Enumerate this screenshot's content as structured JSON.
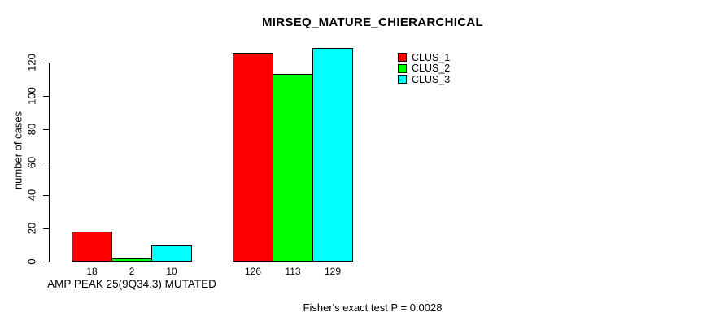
{
  "chart_data": {
    "type": "bar",
    "title": "MIRSEQ_MATURE_CHIERARCHICAL",
    "ylabel": "number of cases",
    "xlabel": "",
    "ylim": [
      0,
      120
    ],
    "yticks": [
      0,
      20,
      40,
      60,
      80,
      100,
      120
    ],
    "categories": [
      "AMP PEAK 25(9Q34.3) MUTATED",
      ""
    ],
    "series": [
      {
        "name": "CLUS_1",
        "color": "#FF0000",
        "values": [
          18,
          126
        ]
      },
      {
        "name": "CLUS_2",
        "color": "#00FF00",
        "values": [
          2,
          113
        ]
      },
      {
        "name": "CLUS_3",
        "color": "#00FFFF",
        "values": [
          10,
          129
        ]
      }
    ],
    "bar_value_labels": [
      [
        18,
        2,
        10
      ],
      [
        126,
        113,
        129
      ]
    ],
    "legend_position": "top-right",
    "grid": false,
    "annotation": "Fisher's exact test P = 0.0028"
  },
  "colors": {
    "background": "#FFFFFF",
    "axis": "#000000",
    "bar_border": "#000000",
    "clus_1": "#FF0000",
    "clus_2": "#00FF00",
    "clus_3": "#00FFFF"
  }
}
